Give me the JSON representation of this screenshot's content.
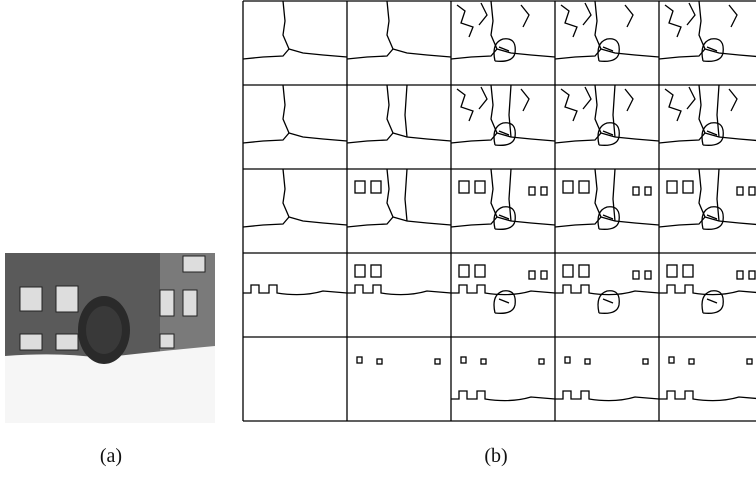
{
  "panel_a": {
    "caption": "(a)"
  },
  "panel_b": {
    "caption": "(b)"
  }
}
